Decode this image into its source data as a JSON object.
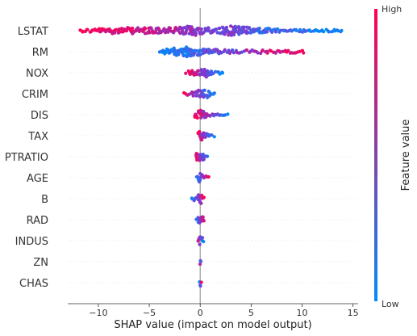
{
  "chart_data": {
    "type": "scatter",
    "subtype": "beeswarm",
    "xlabel": "SHAP value (impact on model output)",
    "xlim": [
      -13,
      15.5
    ],
    "xticks": [
      -10,
      -5,
      0,
      5,
      10,
      15
    ],
    "colorbar": {
      "label": "Feature value",
      "high_label": "High",
      "low_label": "Low",
      "low_color": "#008bfb",
      "high_color": "#ff0052"
    },
    "zero_line_color": "#999999",
    "row_grid_color": "#cccccc",
    "features": [
      {
        "name": "LSTAT",
        "min": -11.8,
        "max": 14.0,
        "low_side": "positive",
        "spread": [
          [
            -11.8,
            0.4
          ],
          [
            -10,
            0.7
          ],
          [
            -8,
            0.9
          ],
          [
            -6,
            0.9
          ],
          [
            -4,
            0.9
          ],
          [
            -2,
            1.0
          ],
          [
            -0.7,
            1.6
          ],
          [
            0,
            1.0
          ],
          [
            1.5,
            0.8
          ],
          [
            3.2,
            1.5
          ],
          [
            5,
            0.9
          ],
          [
            8,
            0.5
          ],
          [
            11,
            0.4
          ],
          [
            14,
            0.3
          ]
        ]
      },
      {
        "name": "RM",
        "min": -4.0,
        "max": 10.2,
        "low_side": "negative",
        "spread": [
          [
            -4,
            0.5
          ],
          [
            -3,
            0.9
          ],
          [
            -2,
            1.3
          ],
          [
            -1.2,
            1.6
          ],
          [
            -0.5,
            1.3
          ],
          [
            0.5,
            0.8
          ],
          [
            2,
            0.6
          ],
          [
            4,
            0.5
          ],
          [
            6,
            0.5
          ],
          [
            8,
            0.4
          ],
          [
            10.2,
            0.5
          ]
        ]
      },
      {
        "name": "NOX",
        "min": -1.5,
        "max": 2.3,
        "low_side": "positive",
        "spread": [
          [
            -1.5,
            0.3
          ],
          [
            -0.8,
            0.8
          ],
          [
            0,
            1.0
          ],
          [
            0.5,
            1.3
          ],
          [
            1.2,
            0.6
          ],
          [
            2.3,
            0.3
          ]
        ]
      },
      {
        "name": "CRIM",
        "min": -1.7,
        "max": 1.5,
        "low_side": "positive",
        "spread": [
          [
            -1.7,
            0.3
          ],
          [
            -0.8,
            0.6
          ],
          [
            0,
            1.2
          ],
          [
            0.5,
            1.4
          ],
          [
            1,
            0.6
          ],
          [
            1.5,
            0.2
          ]
        ]
      },
      {
        "name": "DIS",
        "min": -0.6,
        "max": 2.8,
        "low_side": "positive",
        "spread": [
          [
            -0.6,
            0.6
          ],
          [
            0,
            1.4
          ],
          [
            0.4,
            1.2
          ],
          [
            1,
            0.4
          ],
          [
            1.7,
            0.2
          ],
          [
            2.8,
            0.2
          ]
        ]
      },
      {
        "name": "TAX",
        "min": -0.4,
        "max": 1.4,
        "low_side": "positive",
        "spread": [
          [
            -0.4,
            0.5
          ],
          [
            0,
            1.4
          ],
          [
            0.4,
            1.2
          ],
          [
            0.9,
            0.6
          ],
          [
            1.4,
            0.3
          ]
        ]
      },
      {
        "name": "PTRATIO",
        "min": -0.6,
        "max": 0.8,
        "low_side": "positive",
        "spread": [
          [
            -0.6,
            0.6
          ],
          [
            -0.2,
            1.3
          ],
          [
            0.3,
            1.4
          ],
          [
            0.6,
            0.8
          ],
          [
            0.8,
            0.3
          ]
        ]
      },
      {
        "name": "AGE",
        "min": -0.4,
        "max": 0.9,
        "low_side": "negative",
        "spread": [
          [
            -0.4,
            0.5
          ],
          [
            -0.1,
            1.3
          ],
          [
            0.2,
            1.2
          ],
          [
            0.5,
            0.6
          ],
          [
            0.9,
            0.3
          ]
        ]
      },
      {
        "name": "B",
        "min": -0.9,
        "max": 0.4,
        "low_side": "negative",
        "spread": [
          [
            -0.9,
            0.3
          ],
          [
            -0.4,
            0.7
          ],
          [
            0,
            1.5
          ],
          [
            0.3,
            0.8
          ],
          [
            0.4,
            0.3
          ]
        ]
      },
      {
        "name": "RAD",
        "min": -0.4,
        "max": 0.5,
        "low_side": "negative",
        "spread": [
          [
            -0.4,
            0.4
          ],
          [
            -0.1,
            1.2
          ],
          [
            0.2,
            1.2
          ],
          [
            0.5,
            0.3
          ]
        ]
      },
      {
        "name": "INDUS",
        "min": -0.3,
        "max": 0.4,
        "low_side": "positive",
        "spread": [
          [
            -0.3,
            0.4
          ],
          [
            0,
            1.4
          ],
          [
            0.2,
            1.0
          ],
          [
            0.4,
            0.3
          ]
        ]
      },
      {
        "name": "ZN",
        "min": -0.15,
        "max": 0.15,
        "low_side": "positive",
        "spread": [
          [
            -0.15,
            0.3
          ],
          [
            0,
            1.4
          ],
          [
            0.15,
            0.3
          ]
        ]
      },
      {
        "name": "CHAS",
        "min": -0.1,
        "max": 0.15,
        "low_side": "negative",
        "spread": [
          [
            -0.1,
            0.3
          ],
          [
            0,
            1.5
          ],
          [
            0.15,
            0.3
          ]
        ]
      }
    ]
  }
}
